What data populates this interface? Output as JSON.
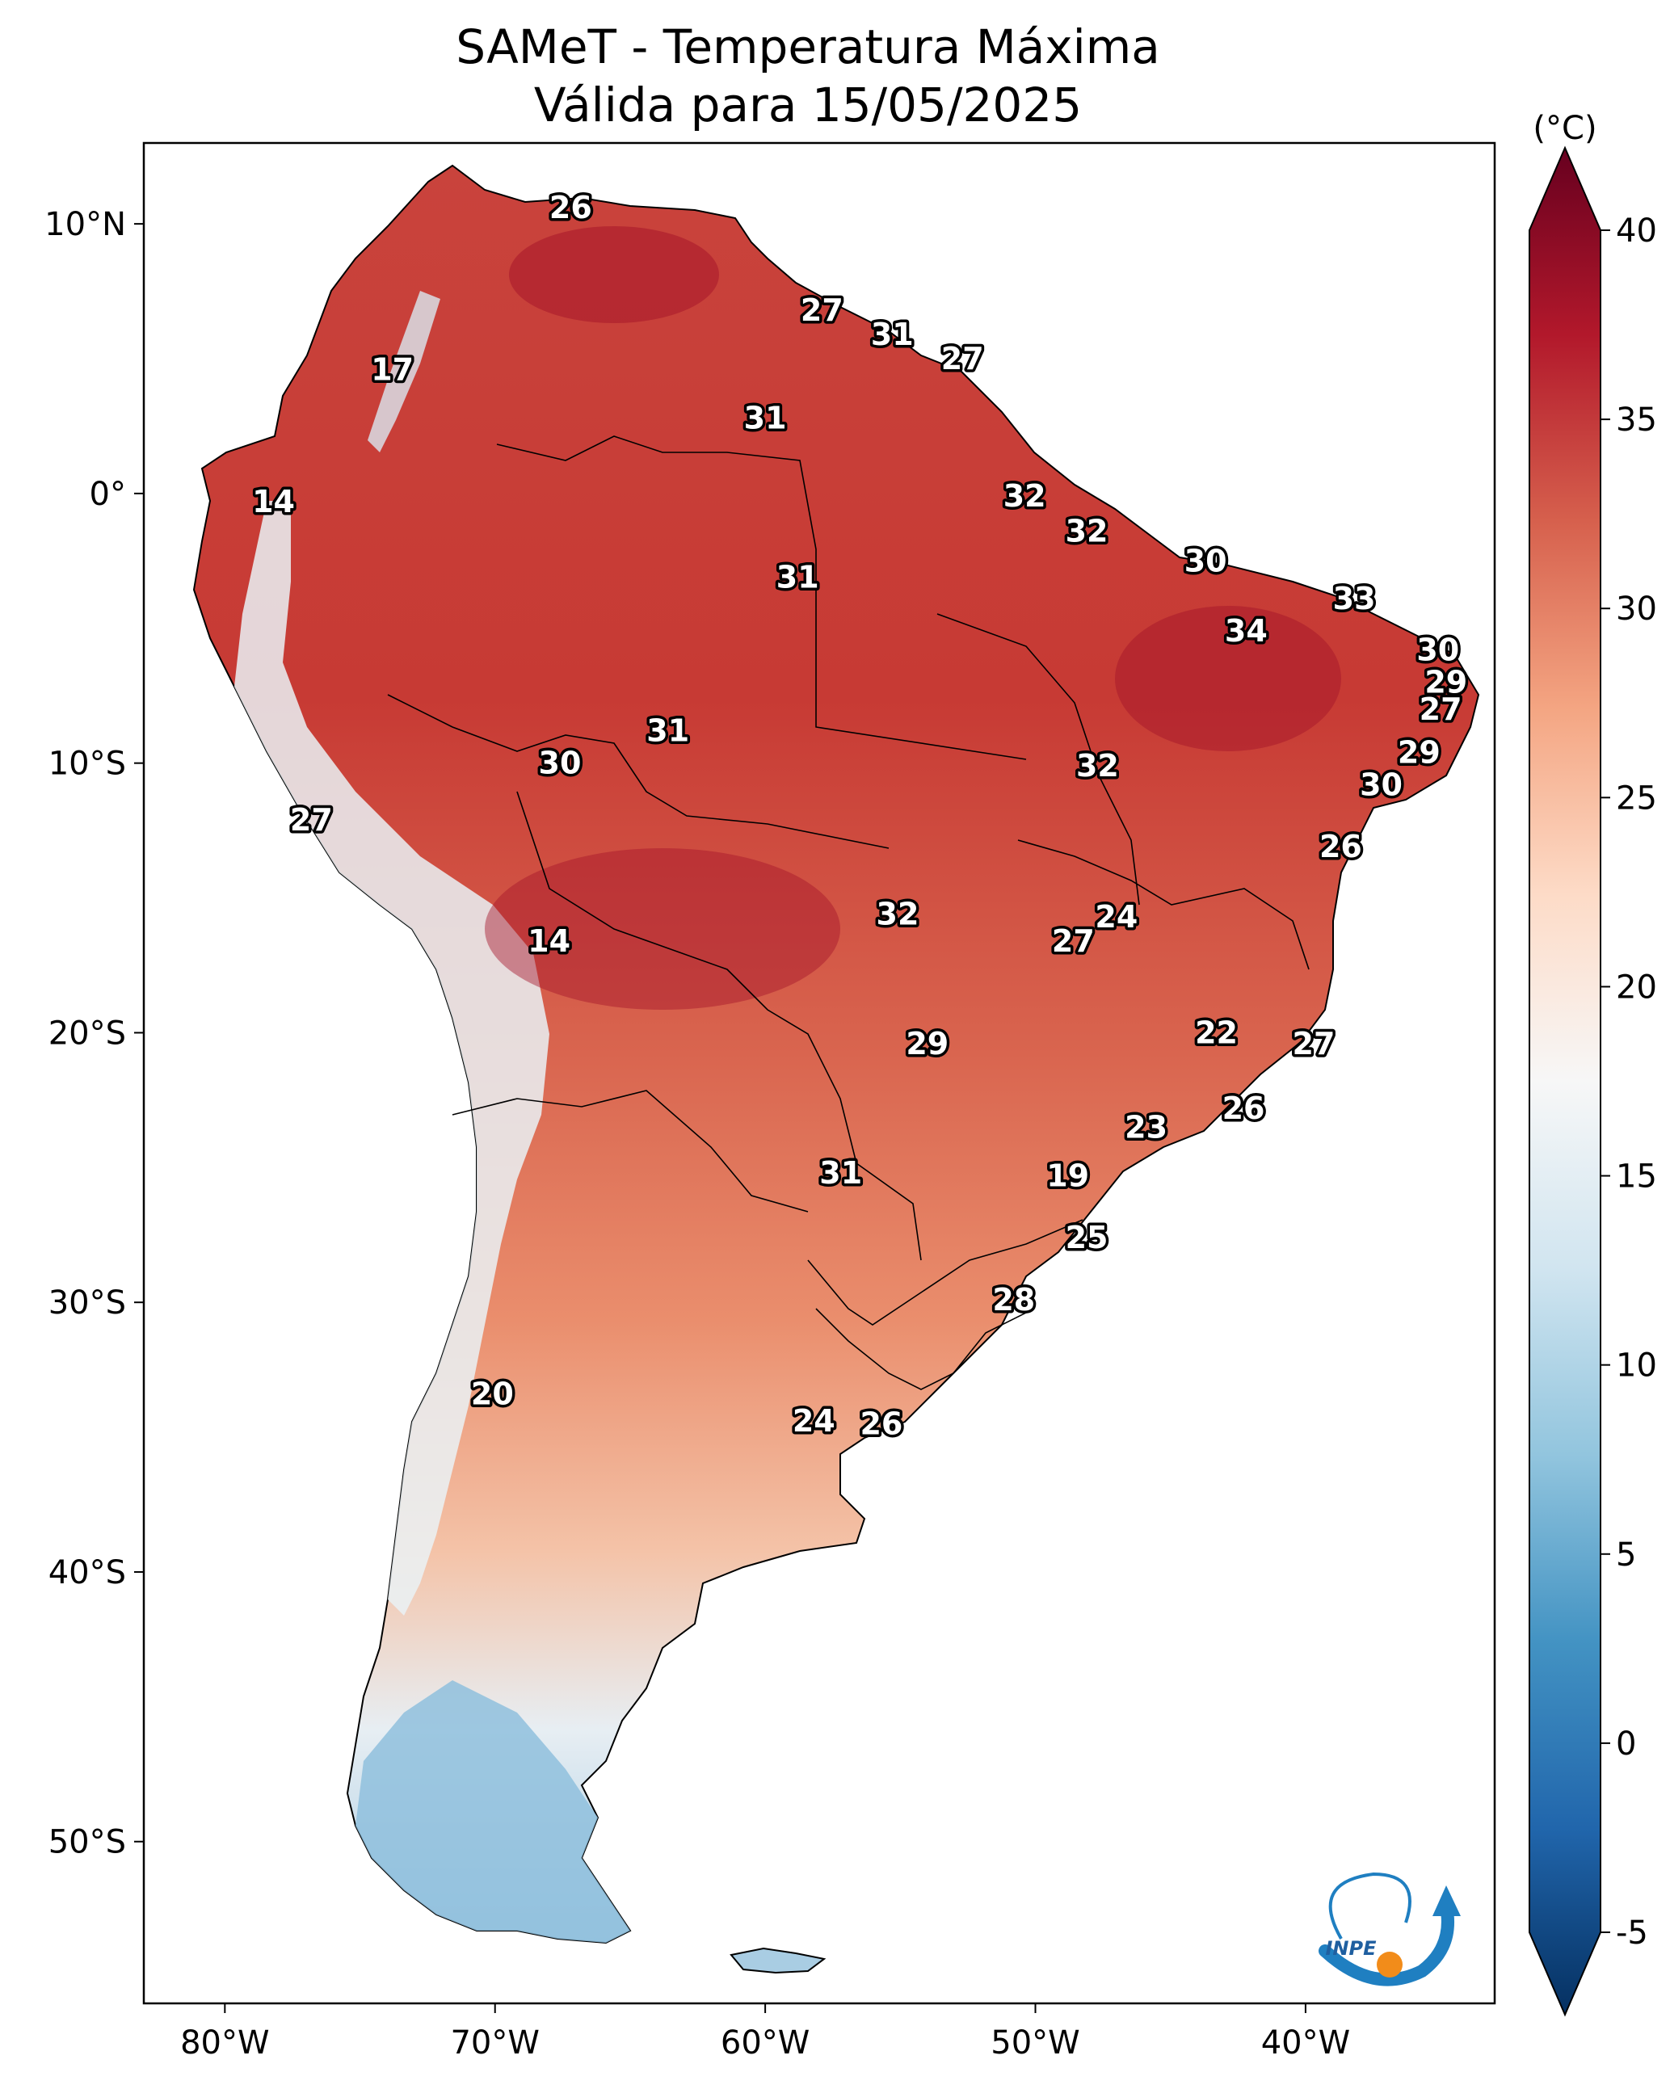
{
  "title": {
    "line1": "SAMeT - Temperatura Máxima",
    "line2": "Válida para 15/05/2025"
  },
  "colorbar": {
    "unit": "(°C)",
    "min": -5,
    "max": 40,
    "ticks": [
      "40",
      "35",
      "30",
      "25",
      "20",
      "15",
      "10",
      "5",
      "0",
      "-5"
    ],
    "colors": [
      "#053061",
      "#2166ac",
      "#4393c3",
      "#92c5de",
      "#d1e5f0",
      "#f7f7f7",
      "#fddbc7",
      "#f4a582",
      "#d6604d",
      "#b2182b",
      "#67001f"
    ]
  },
  "axes": {
    "lon_ticks": [
      "80°W",
      "70°W",
      "60°W",
      "50°W",
      "40°W"
    ],
    "lat_ticks": [
      "10°N",
      "0°",
      "10°S",
      "20°S",
      "30°S",
      "40°S",
      "50°S"
    ]
  },
  "logo": {
    "text": "INPE"
  },
  "labels": [
    {
      "v": "26",
      "lon": -67.2,
      "lat": 10.6
    },
    {
      "v": "27",
      "lon": -57.9,
      "lat": 6.8
    },
    {
      "v": "31",
      "lon": -55.3,
      "lat": 5.9
    },
    {
      "v": "27",
      "lon": -52.7,
      "lat": 5.0
    },
    {
      "v": "17",
      "lon": -73.8,
      "lat": 4.6
    },
    {
      "v": "31",
      "lon": -60.0,
      "lat": 2.8
    },
    {
      "v": "14",
      "lon": -78.2,
      "lat": -0.3
    },
    {
      "v": "32",
      "lon": -50.4,
      "lat": -0.1
    },
    {
      "v": "32",
      "lon": -48.1,
      "lat": -1.4
    },
    {
      "v": "30",
      "lon": -43.7,
      "lat": -2.5
    },
    {
      "v": "31",
      "lon": -58.8,
      "lat": -3.1
    },
    {
      "v": "33",
      "lon": -38.2,
      "lat": -3.9
    },
    {
      "v": "34",
      "lon": -42.2,
      "lat": -5.1
    },
    {
      "v": "30",
      "lon": -35.1,
      "lat": -5.8
    },
    {
      "v": "29",
      "lon": -34.8,
      "lat": -7.0
    },
    {
      "v": "27",
      "lon": -35.0,
      "lat": -8.0
    },
    {
      "v": "31",
      "lon": -63.6,
      "lat": -8.8
    },
    {
      "v": "29",
      "lon": -35.8,
      "lat": -9.6
    },
    {
      "v": "30",
      "lon": -67.6,
      "lat": -10.0
    },
    {
      "v": "32",
      "lon": -47.7,
      "lat": -10.1
    },
    {
      "v": "30",
      "lon": -37.2,
      "lat": -10.8
    },
    {
      "v": "27",
      "lon": -76.8,
      "lat": -12.1
    },
    {
      "v": "26",
      "lon": -38.7,
      "lat": -13.1
    },
    {
      "v": "24",
      "lon": -47.0,
      "lat": -15.7
    },
    {
      "v": "32",
      "lon": -55.1,
      "lat": -15.6
    },
    {
      "v": "27",
      "lon": -48.6,
      "lat": -16.6
    },
    {
      "v": "14",
      "lon": -68.0,
      "lat": -16.6
    },
    {
      "v": "22",
      "lon": -43.3,
      "lat": -20.0
    },
    {
      "v": "29",
      "lon": -54.0,
      "lat": -20.4
    },
    {
      "v": "27",
      "lon": -39.7,
      "lat": -20.4
    },
    {
      "v": "26",
      "lon": -42.3,
      "lat": -22.8
    },
    {
      "v": "23",
      "lon": -45.9,
      "lat": -23.5
    },
    {
      "v": "31",
      "lon": -57.2,
      "lat": -25.2
    },
    {
      "v": "19",
      "lon": -48.8,
      "lat": -25.3
    },
    {
      "v": "25",
      "lon": -48.1,
      "lat": -27.6
    },
    {
      "v": "28",
      "lon": -50.8,
      "lat": -29.9
    },
    {
      "v": "20",
      "lon": -70.1,
      "lat": -33.4
    },
    {
      "v": "24",
      "lon": -58.2,
      "lat": -34.4
    },
    {
      "v": "26",
      "lon": -55.7,
      "lat": -34.5
    }
  ]
}
